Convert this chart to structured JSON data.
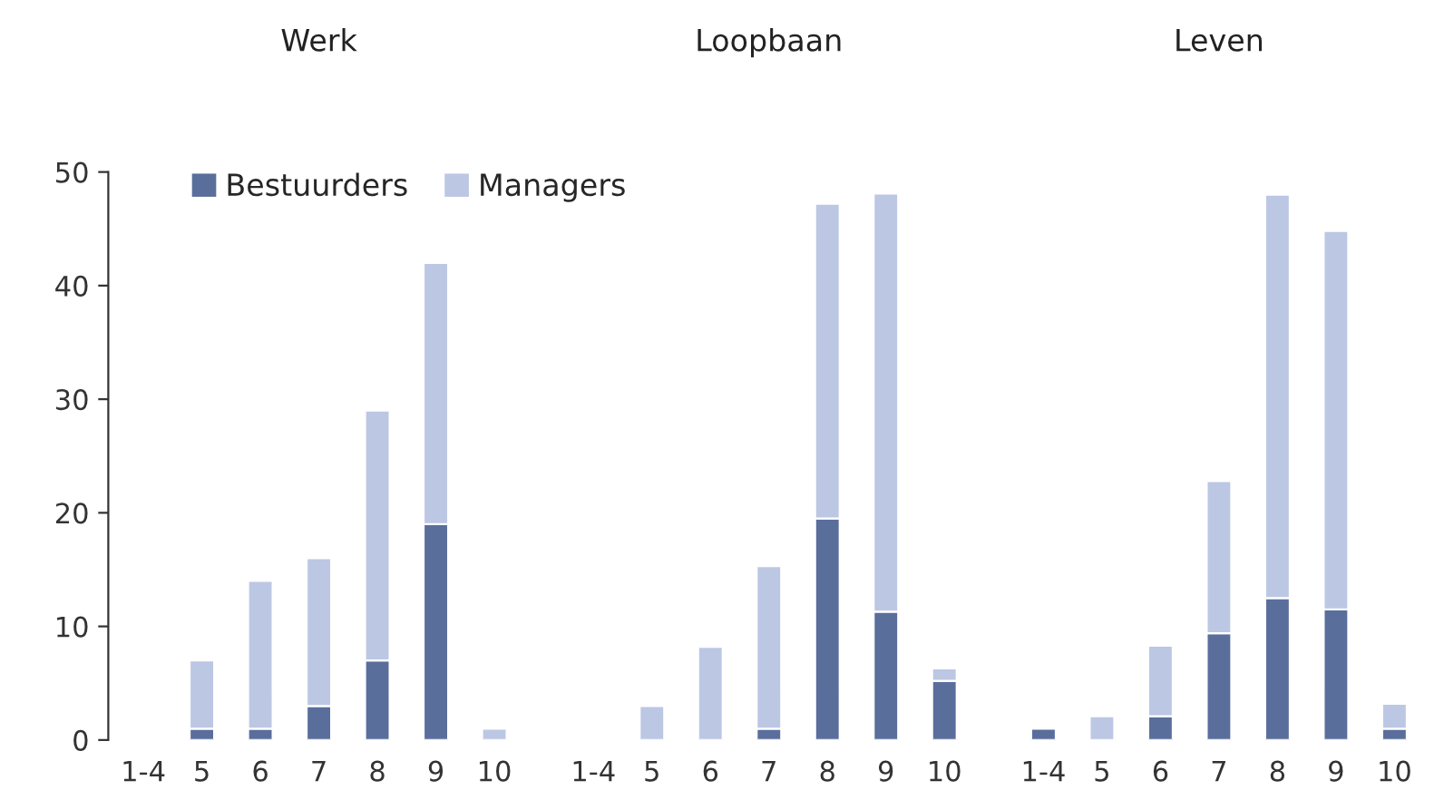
{
  "chart_data": [
    {
      "type": "bar",
      "title": "Werk",
      "stacked": true,
      "categories": [
        "1-4",
        "5",
        "6",
        "7",
        "8",
        "9",
        "10"
      ],
      "ylim": [
        0,
        50
      ],
      "yticks": [
        0,
        10,
        20,
        30,
        40,
        50
      ],
      "legend": "top",
      "grid": false,
      "series": [
        {
          "name": "Bestuurders",
          "color": "#5a6e9c",
          "values": [
            0,
            1,
            1,
            3,
            7,
            19,
            0
          ]
        },
        {
          "name": "Managers",
          "color": "#bcc7e4",
          "values": [
            0,
            6,
            13,
            13,
            22,
            23,
            1
          ]
        }
      ]
    },
    {
      "type": "bar",
      "title": "Loopbaan",
      "stacked": true,
      "categories": [
        "1-4",
        "5",
        "6",
        "7",
        "8",
        "9",
        "10"
      ],
      "ylim": [
        0,
        50
      ],
      "tick_labels": "x",
      "grid": false,
      "series": [
        {
          "color": "#5a6e9c",
          "values": [
            0,
            0,
            0,
            1,
            19.5,
            11.3,
            5.2
          ]
        },
        {
          "color": "#bcc7e4",
          "values": [
            0,
            3,
            8.2,
            14.3,
            27.7,
            36.8,
            1.1
          ]
        }
      ]
    },
    {
      "type": "bar",
      "title": "Leven",
      "stacked": true,
      "categories": [
        "1-4",
        "5",
        "6",
        "7",
        "8",
        "9",
        "10"
      ],
      "ylim": [
        0,
        50
      ],
      "tick_labels": "x",
      "grid": false,
      "series": [
        {
          "color": "#5a6e9c",
          "values": [
            1,
            0,
            2.1,
            9.4,
            12.5,
            11.5,
            1
          ]
        },
        {
          "color": "#bcc7e4",
          "values": [
            0,
            2.1,
            6.2,
            13.4,
            35.5,
            33.3,
            2.2
          ]
        }
      ]
    }
  ]
}
